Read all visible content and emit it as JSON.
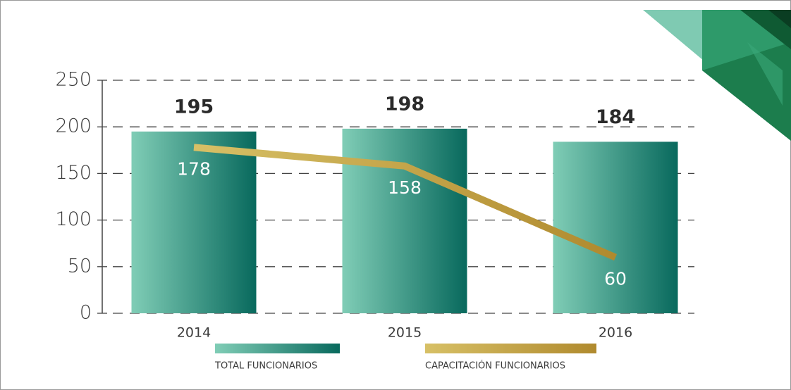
{
  "chart_data": {
    "type": "bar",
    "categories": [
      "2014",
      "2015",
      "2016"
    ],
    "series": [
      {
        "name": "TOTAL FUNCIONARIOS",
        "type": "bar",
        "color": "#08695d",
        "values": [
          195,
          198,
          184
        ]
      },
      {
        "name": "CAPACITACIÓN FUNCIONARIOS",
        "type": "line",
        "color": "#b08a2e",
        "values": [
          178,
          158,
          60
        ]
      }
    ],
    "ylim": [
      0,
      250
    ],
    "yticks": [
      0,
      50,
      100,
      150,
      200,
      250
    ],
    "grid": true
  }
}
